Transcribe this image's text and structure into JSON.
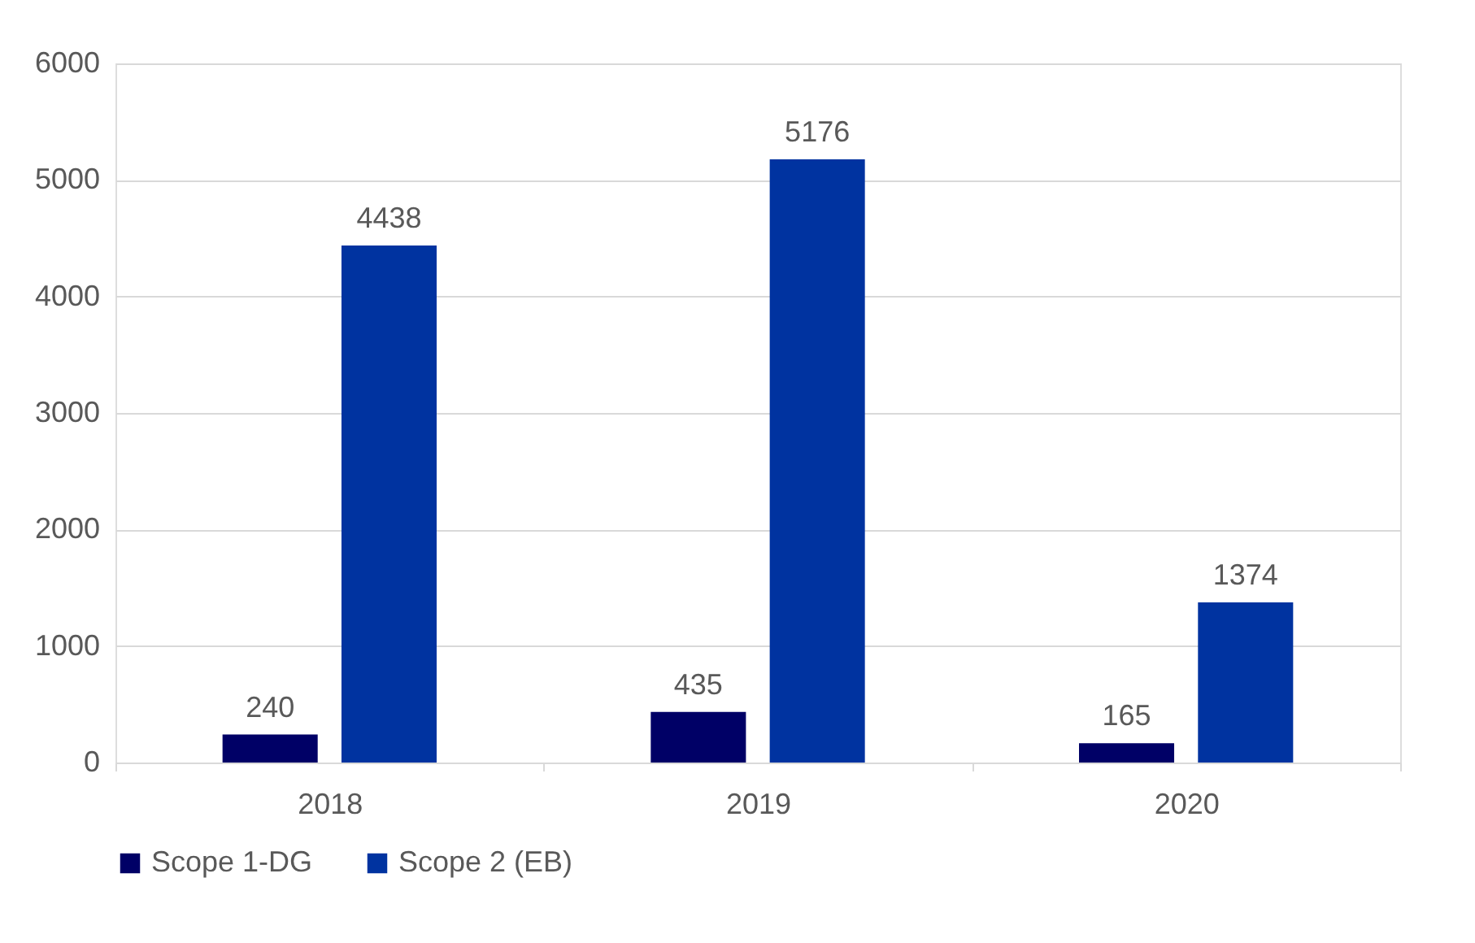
{
  "chart_data": {
    "type": "bar",
    "categories": [
      "2018",
      "2019",
      "2020"
    ],
    "series": [
      {
        "name": "Scope 1-DG",
        "color": "#000066",
        "values": [
          240,
          435,
          165
        ]
      },
      {
        "name": "Scope 2 (EB)",
        "color": "#0033a0",
        "values": [
          4438,
          5176,
          1374
        ]
      }
    ],
    "ylim": [
      0,
      6000
    ],
    "yticks": [
      0,
      1000,
      2000,
      3000,
      4000,
      5000,
      6000
    ],
    "grid": "y",
    "legend": "bottom",
    "data_labels": true
  }
}
